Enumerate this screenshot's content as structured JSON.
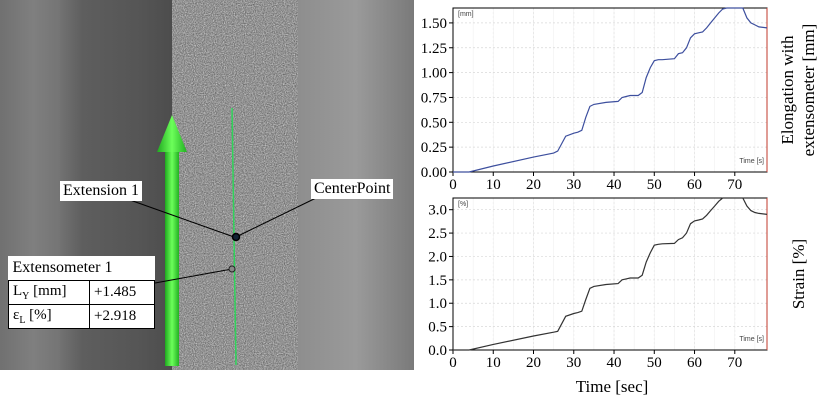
{
  "photo": {
    "extension_label": "Extension 1",
    "centerpoint_label": "CenterPoint",
    "table": {
      "title": "Extensometer 1",
      "rows": [
        {
          "label": "L",
          "sub": "Y",
          "unit": " [mm]",
          "value": "+1.485"
        },
        {
          "label": "ε",
          "sub": "L",
          "unit": " [%]",
          "value": "+2.918"
        }
      ]
    }
  },
  "chart_data": [
    {
      "type": "line",
      "title": "",
      "xlabel": "",
      "ylabel": "Elongation with extensometer [mm]",
      "ylabel_lines": [
        "Elongation with",
        "extensometer [mm]"
      ],
      "inner_ylabel": "[mm]",
      "inner_xlabel": "Time [s]",
      "xlim": [
        0,
        78
      ],
      "ylim": [
        0,
        1.65
      ],
      "xticks": [
        0,
        10,
        20,
        30,
        40,
        50,
        60,
        70
      ],
      "yticks": [
        0.0,
        0.25,
        0.5,
        0.75,
        1.0,
        1.25,
        1.5
      ],
      "ytick_labels": [
        "0.00",
        "0.25",
        "0.50",
        "0.75",
        "1.00",
        "1.25",
        "1.50"
      ],
      "grid": true,
      "color": "#3d4f9e",
      "x": [
        0,
        4,
        10,
        20,
        25,
        26,
        28,
        30,
        31,
        32,
        33,
        34,
        35,
        38,
        41,
        42,
        43,
        44,
        46,
        47,
        48,
        49,
        50,
        51,
        52,
        55,
        56,
        57,
        58,
        59,
        60,
        61,
        62,
        63,
        64,
        65,
        66,
        67,
        68,
        69,
        70,
        71,
        72,
        73,
        74,
        75,
        76,
        78
      ],
      "y": [
        0.0,
        0.0,
        0.06,
        0.15,
        0.19,
        0.21,
        0.36,
        0.39,
        0.4,
        0.42,
        0.55,
        0.66,
        0.68,
        0.7,
        0.71,
        0.75,
        0.76,
        0.77,
        0.77,
        0.8,
        0.95,
        1.05,
        1.12,
        1.13,
        1.13,
        1.14,
        1.19,
        1.2,
        1.25,
        1.35,
        1.39,
        1.4,
        1.41,
        1.45,
        1.5,
        1.55,
        1.6,
        1.64,
        1.66,
        1.67,
        1.66,
        1.67,
        1.65,
        1.55,
        1.5,
        1.48,
        1.46,
        1.45
      ]
    },
    {
      "type": "line",
      "title": "",
      "xlabel": "Time [sec]",
      "ylabel": "Strain [%]",
      "inner_ylabel": "[%]",
      "inner_xlabel": "Time [s]",
      "xlim": [
        0,
        78
      ],
      "ylim": [
        0,
        3.25
      ],
      "xticks": [
        0,
        10,
        20,
        30,
        40,
        50,
        60,
        70
      ],
      "yticks": [
        0.0,
        0.5,
        1.0,
        1.5,
        2.0,
        2.5,
        3.0
      ],
      "ytick_labels": [
        "0.0",
        "0.5",
        "1.0",
        "1.5",
        "2.0",
        "2.5",
        "3.0"
      ],
      "grid": true,
      "color": "#333333",
      "x": [
        0,
        4,
        10,
        20,
        25,
        26,
        28,
        30,
        31,
        32,
        33,
        34,
        35,
        38,
        41,
        42,
        43,
        44,
        46,
        47,
        48,
        49,
        50,
        51,
        52,
        55,
        56,
        57,
        58,
        59,
        60,
        61,
        62,
        63,
        64,
        65,
        66,
        67,
        68,
        69,
        70,
        71,
        72,
        73,
        74,
        75,
        76,
        78
      ],
      "y": [
        0.0,
        0.0,
        0.12,
        0.3,
        0.38,
        0.4,
        0.72,
        0.78,
        0.8,
        0.83,
        1.08,
        1.32,
        1.36,
        1.4,
        1.42,
        1.5,
        1.52,
        1.54,
        1.54,
        1.6,
        1.88,
        2.08,
        2.24,
        2.26,
        2.27,
        2.28,
        2.36,
        2.4,
        2.5,
        2.7,
        2.76,
        2.78,
        2.8,
        2.88,
        2.98,
        3.08,
        3.18,
        3.26,
        3.29,
        3.3,
        3.28,
        3.3,
        3.25,
        3.08,
        2.98,
        2.94,
        2.92,
        2.9
      ]
    }
  ]
}
